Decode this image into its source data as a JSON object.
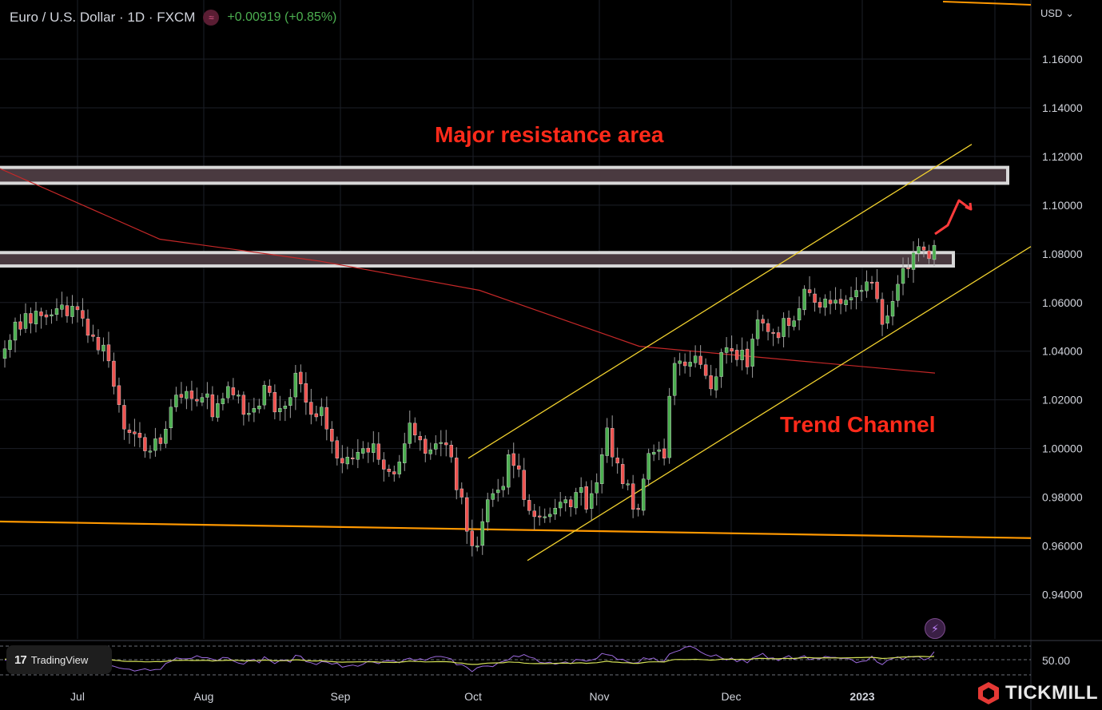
{
  "header": {
    "title": "Euro / U.S. Dollar · 1D · FXCM",
    "change": "+0.00919 (+0.85%)",
    "badge_icon": "wave-icon",
    "currency": "USD",
    "currency_icon": "chevron-down-icon"
  },
  "annotations": {
    "resistance": "Major resistance area",
    "channel": "Trend Channel"
  },
  "branding": {
    "tradingview_label": "TradingView",
    "tradingview_mark": "17",
    "tickmill_label": "TICKMILL"
  },
  "colors": {
    "up": "#4caf50",
    "down": "#ef5350",
    "ma": "#c62828",
    "orange": "#ff9800",
    "channel": "#f2d22e",
    "zone_fill": "#4a3a40",
    "zone_border": "#d8d8d8",
    "rsi": "#9c6ade",
    "rsi_ma": "#d4e157",
    "annotation": "#ff2a1a",
    "arrow": "#ff3b3b"
  },
  "chart_data": {
    "type": "candlestick",
    "symbol": "EURUSD",
    "timeframe": "1D",
    "xlabels": [
      "Jul",
      "Aug",
      "Sep",
      "Oct",
      "Nov",
      "Dec",
      "2023"
    ],
    "ylim": [
      0.925,
      1.176
    ],
    "yticks": [
      "1.16000",
      "1.14000",
      "1.12000",
      "1.10000",
      "1.08000",
      "1.06000",
      "1.04000",
      "1.02000",
      "1.00000",
      "0.98000",
      "0.96000",
      "0.94000"
    ],
    "rsi_label": "50.00",
    "close_prices": [
      1.041,
      1.0445,
      1.052,
      1.049,
      1.0555,
      1.0515,
      1.0565,
      1.0545,
      1.054,
      1.055,
      1.0575,
      1.059,
      1.0545,
      1.0585,
      1.057,
      1.0535,
      1.0465,
      1.046,
      1.0405,
      1.0425,
      1.036,
      1.0255,
      1.018,
      1.008,
      1.0065,
      1.006,
      1.0045,
      0.999,
      0.999,
      1.004,
      1.002,
      1.008,
      1.017,
      1.022,
      1.021,
      1.0235,
      1.0205,
      1.0195,
      1.021,
      1.0225,
      1.013,
      1.0185,
      1.0205,
      1.0255,
      1.022,
      1.022,
      1.014,
      1.0145,
      1.0165,
      1.0175,
      1.026,
      1.023,
      1.015,
      1.0165,
      1.0175,
      1.021,
      1.031,
      1.0265,
      1.019,
      1.014,
      1.013,
      1.017,
      1.008,
      1.003,
      0.996,
      0.994,
      0.9965,
      0.996,
      0.9985,
      1.0,
      0.9985,
      1.002,
      0.9955,
      0.9915,
      0.9905,
      0.9895,
      0.9945,
      1.002,
      1.0105,
      1.0055,
      1.0035,
      0.998,
      0.9995,
      1.002,
      1.0025,
      1.0015,
      0.9965,
      0.983,
      0.98,
      0.966,
      0.96,
      0.96,
      0.97,
      0.979,
      0.9815,
      0.983,
      0.9845,
      0.9975,
      0.993,
      0.9915,
      0.979,
      0.9745,
      0.972,
      0.972,
      0.972,
      0.973,
      0.9755,
      0.978,
      0.979,
      0.976,
      0.982,
      0.984,
      0.975,
      0.9815,
      0.986,
      0.9975,
      1.0085,
      0.9965,
      0.994,
      0.9855,
      0.9855,
      0.975,
      0.975,
      0.9875,
      0.998,
      0.9985,
      0.9995,
      0.996,
      1.0215,
      1.035,
      1.036,
      1.034,
      1.0355,
      1.038,
      1.0345,
      1.03,
      1.0245,
      1.0295,
      1.0395,
      1.0415,
      1.04,
      1.0365,
      1.0405,
      1.0335,
      1.045,
      1.053,
      1.0515,
      1.048,
      1.0475,
      1.0455,
      1.0535,
      1.0505,
      1.0525,
      1.0575,
      1.0655,
      1.064,
      1.06,
      1.058,
      1.0615,
      1.0595,
      1.061,
      1.0595,
      1.061,
      1.062,
      1.065,
      1.065,
      1.0685,
      1.068,
      1.0615,
      1.051,
      1.0545,
      1.0605,
      1.0675,
      1.074,
      1.074,
      1.0805,
      1.083,
      1.0815,
      1.078,
      1.0835
    ],
    "ma_line": [
      [
        0,
        1.115
      ],
      [
        200,
        1.086
      ],
      [
        400,
        1.077
      ],
      [
        600,
        1.065
      ],
      [
        800,
        1.042
      ],
      [
        1000,
        1.036
      ],
      [
        1170,
        1.031
      ]
    ],
    "support_line": [
      [
        0,
        0.97
      ],
      [
        1290,
        0.9632
      ]
    ],
    "resistance_zones": [
      [
        1.109,
        1.1155
      ],
      [
        1.075,
        1.0805
      ]
    ],
    "channel_upper": [
      [
        586,
        0.996
      ],
      [
        1216,
        1.125
      ]
    ],
    "channel_lower": [
      [
        660,
        0.954
      ],
      [
        1290,
        1.083
      ]
    ]
  }
}
